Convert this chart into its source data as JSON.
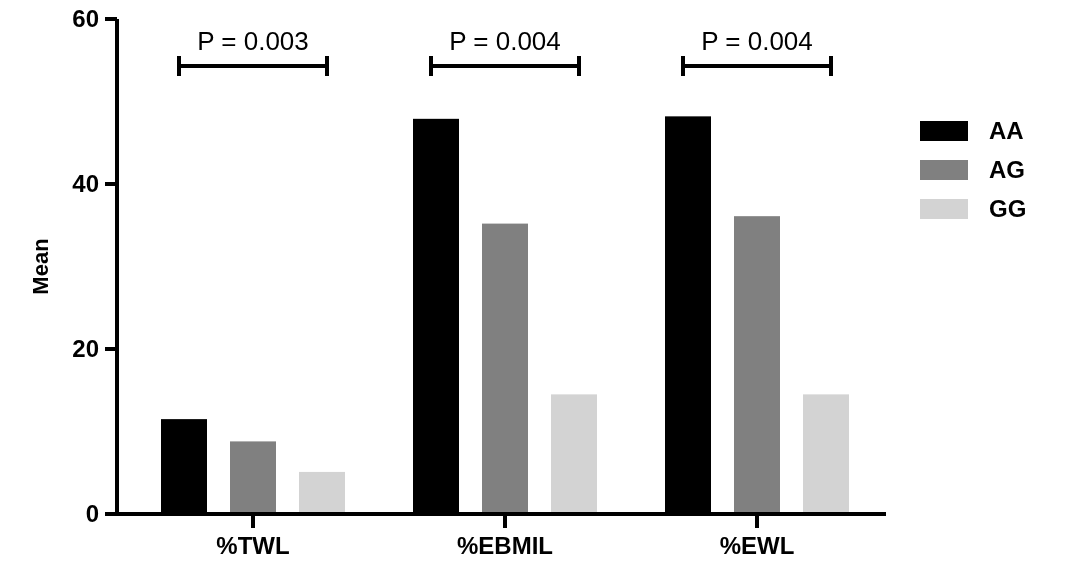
{
  "chart_data": {
    "type": "bar",
    "ylabel": "Mean",
    "categories": [
      "%TWL",
      "%EBMIL",
      "%EWL"
    ],
    "series": [
      {
        "name": "AA",
        "color": "#000000",
        "values": [
          11.5,
          47.9,
          48.2
        ]
      },
      {
        "name": "AG",
        "color": "#808080",
        "values": [
          8.8,
          35.2,
          36.1
        ]
      },
      {
        "name": "GG",
        "color": "#d3d3d3",
        "values": [
          5.1,
          14.5,
          14.5
        ]
      }
    ],
    "ylim": [
      0,
      60
    ],
    "yticks": [
      0,
      20,
      40,
      60
    ],
    "grid": false,
    "legend": "right",
    "annotations": [
      "P = 0.003",
      "P = 0.004",
      "P = 0.004"
    ]
  }
}
